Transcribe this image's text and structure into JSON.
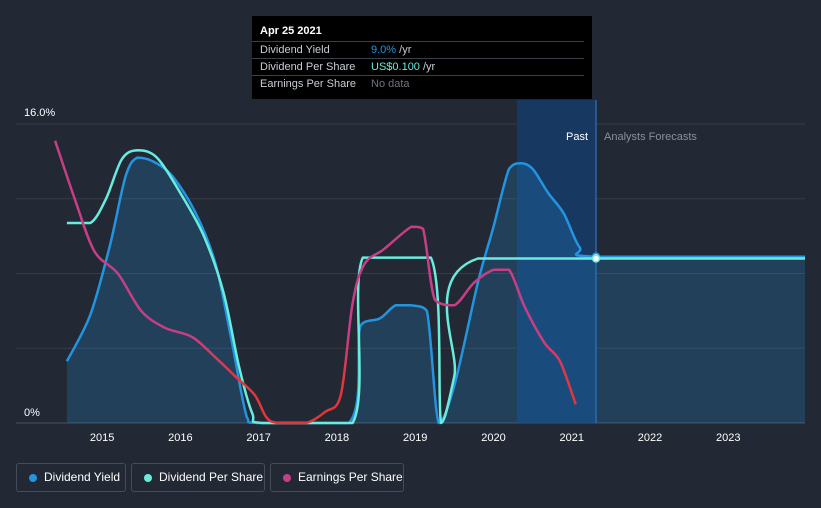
{
  "tooltip": {
    "date": "Apr 25 2021",
    "rows": [
      {
        "label": "Dividend Yield",
        "value": "9.0%",
        "unit": " /yr",
        "color": "#2394df"
      },
      {
        "label": "Dividend Per Share",
        "value": "US$0.100",
        "unit": " /yr",
        "color": "#69ecdc"
      },
      {
        "label": "Earnings Per Share",
        "value": "No data",
        "unit": "",
        "color": "#6d7381"
      }
    ]
  },
  "legend": [
    {
      "label": "Dividend Yield",
      "color": "#2394df"
    },
    {
      "label": "Dividend Per Share",
      "color": "#69ecdc"
    },
    {
      "label": "Earnings Per Share",
      "color": "#c63f86"
    }
  ],
  "chart_data": {
    "type": "line",
    "title": "",
    "xlabel": "",
    "ylabel": "",
    "x_ticks": [
      "2015",
      "2016",
      "2017",
      "2018",
      "2019",
      "2020",
      "2021",
      "2022",
      "2023"
    ],
    "x_tick_values": [
      2015,
      2016,
      2017,
      2018,
      2019,
      2020,
      2021,
      2022,
      2023
    ],
    "y_tick_labels": {
      "top": "16.0%",
      "bottom": "0%"
    },
    "xlim": [
      2013.9,
      2023.98
    ],
    "ylim": [
      0,
      16
    ],
    "past_label": "Past",
    "forecast_label": "Analysts Forecasts",
    "highlight_range": [
      2020.3,
      2021.31
    ],
    "divider_x": 2021.31,
    "marker_x": 2021.31,
    "series": [
      {
        "name": "Dividend Yield",
        "color": "#2394df",
        "filled": true,
        "points": [
          [
            2014.55,
            3.3
          ],
          [
            2014.85,
            5.8
          ],
          [
            2015.1,
            9.5
          ],
          [
            2015.3,
            13.2
          ],
          [
            2015.45,
            14.2
          ],
          [
            2015.65,
            14.0
          ],
          [
            2015.9,
            13.2
          ],
          [
            2016.2,
            11.2
          ],
          [
            2016.45,
            8.5
          ],
          [
            2016.65,
            4.5
          ],
          [
            2016.85,
            0.3
          ],
          [
            2017.0,
            0
          ],
          [
            2018.15,
            0
          ],
          [
            2018.3,
            5.2
          ],
          [
            2018.55,
            5.6
          ],
          [
            2018.75,
            6.3
          ],
          [
            2018.95,
            6.3
          ],
          [
            2019.15,
            6.0
          ],
          [
            2019.3,
            0
          ],
          [
            2019.5,
            2.0
          ],
          [
            2019.8,
            7.5
          ],
          [
            2020.0,
            10.5
          ],
          [
            2020.2,
            13.6
          ],
          [
            2020.35,
            13.9
          ],
          [
            2020.5,
            13.6
          ],
          [
            2020.7,
            12.3
          ],
          [
            2020.9,
            11.2
          ],
          [
            2021.1,
            9.4
          ],
          [
            2021.31,
            8.9
          ],
          [
            2023.98,
            8.9
          ]
        ]
      },
      {
        "name": "Dividend Per Share",
        "color": "#69ecdc",
        "filled": false,
        "points": [
          [
            2014.55,
            10.7
          ],
          [
            2014.85,
            10.7
          ],
          [
            2015.05,
            12.0
          ],
          [
            2015.25,
            14.1
          ],
          [
            2015.45,
            14.6
          ],
          [
            2015.7,
            14.2
          ],
          [
            2016.0,
            12.3
          ],
          [
            2016.3,
            10.0
          ],
          [
            2016.55,
            7.0
          ],
          [
            2016.75,
            3.0
          ],
          [
            2016.92,
            0.5
          ],
          [
            2017.05,
            0
          ],
          [
            2018.2,
            0
          ],
          [
            2018.33,
            8.85
          ],
          [
            2019.2,
            8.85
          ],
          [
            2019.33,
            0
          ],
          [
            2019.5,
            2.5
          ],
          [
            2019.8,
            8.8
          ],
          [
            2023.98,
            8.8
          ]
        ]
      },
      {
        "name": "Earnings Per Share",
        "color": "#c63f86",
        "lowColor": "#e2373a",
        "filled": false,
        "points": [
          [
            2014.4,
            15.1
          ],
          [
            2014.65,
            12.0
          ],
          [
            2014.9,
            9.2
          ],
          [
            2015.2,
            8.0
          ],
          [
            2015.5,
            6.0
          ],
          [
            2015.8,
            5.1
          ],
          [
            2016.15,
            4.6
          ],
          [
            2016.45,
            3.5
          ],
          [
            2016.7,
            2.5
          ],
          [
            2016.95,
            1.5
          ],
          [
            2017.1,
            0.3
          ],
          [
            2017.25,
            0
          ],
          [
            2017.6,
            0
          ],
          [
            2017.85,
            0.6
          ],
          [
            2018.05,
            1.5
          ],
          [
            2018.2,
            6.4
          ],
          [
            2018.35,
            8.5
          ],
          [
            2018.6,
            9.3
          ],
          [
            2018.95,
            10.5
          ],
          [
            2019.1,
            10.4
          ],
          [
            2019.25,
            6.6
          ],
          [
            2019.5,
            6.3
          ],
          [
            2019.75,
            7.5
          ],
          [
            2020.0,
            8.2
          ],
          [
            2020.2,
            8.2
          ],
          [
            2020.4,
            6.2
          ],
          [
            2020.65,
            4.3
          ],
          [
            2020.85,
            3.3
          ],
          [
            2021.05,
            1.0
          ]
        ]
      }
    ]
  }
}
